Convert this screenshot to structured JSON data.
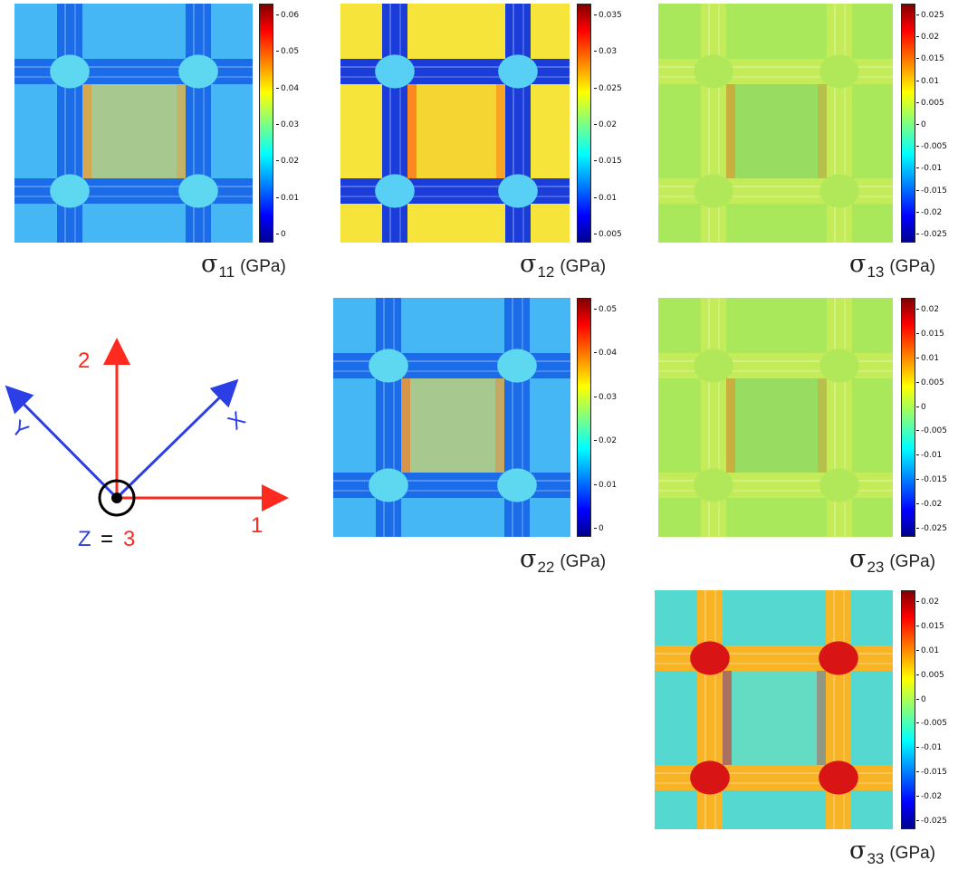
{
  "colors": {
    "axis_red": "#ff2a1f",
    "axis_blue": "#2c3fe6",
    "black": "#000000"
  },
  "panels": [
    {
      "id": "s11",
      "symbol": "σ",
      "subscript": "11",
      "unit": "(GPa)",
      "bg": "#45b7f5",
      "band": "#1a6ce8",
      "node": "#5ed7f0",
      "hot": "#fa8a1f",
      "mid": "#f8d83a",
      "ticks": [
        "0.06",
        "0.05",
        "0.04",
        "0.03",
        "0.02",
        "0.01",
        "0"
      ]
    },
    {
      "id": "s12",
      "symbol": "σ",
      "subscript": "12",
      "unit": "(GPa)",
      "bg": "#f7e43a",
      "band": "#1a3cd8",
      "node": "#58d0f5",
      "hot": "#ff4a12",
      "mid": "#f4c82a",
      "ticks": [
        "0.035",
        "0.03",
        "0.025",
        "0.02",
        "0.015",
        "0.01",
        "0.005"
      ]
    },
    {
      "id": "s13",
      "symbol": "σ",
      "subscript": "13",
      "unit": "(GPa)",
      "bg": "#a8e85a",
      "band": "#c4ec58",
      "node": "#b0e85a",
      "hot": "#f08a20",
      "mid": "#8ad46a",
      "ticks": [
        "0.025",
        "0.02",
        "0.015",
        "0.01",
        "0.005",
        "0",
        "-0.005",
        "-0.01",
        "-0.015",
        "-0.02",
        "-0.025"
      ]
    },
    {
      "id": "s22",
      "symbol": "σ",
      "subscript": "22",
      "unit": "(GPa)",
      "bg": "#45b7f5",
      "band": "#1a6ce8",
      "node": "#5ed7f0",
      "hot": "#ff6a14",
      "mid": "#f8d83a",
      "ticks": [
        "0.05",
        "0.04",
        "0.03",
        "0.02",
        "0.01",
        "0"
      ]
    },
    {
      "id": "s23",
      "symbol": "σ",
      "subscript": "23",
      "unit": "(GPa)",
      "bg": "#a8e85a",
      "band": "#c4ec58",
      "node": "#b0e85a",
      "hot": "#f08a20",
      "mid": "#8ad46a",
      "ticks": [
        "0.02",
        "0.015",
        "0.01",
        "0.005",
        "0",
        "-0.005",
        "-0.01",
        "-0.015",
        "-0.02",
        "-0.025"
      ]
    },
    {
      "id": "s33",
      "symbol": "σ",
      "subscript": "33",
      "unit": "(GPa)",
      "bg": "#55d8d0",
      "band": "#f8b424",
      "node": "#d81414",
      "hot": "#e61a10",
      "mid": "#6fe0b8",
      "ticks": [
        "0.02",
        "0.015",
        "0.01",
        "0.005",
        "0",
        "-0.005",
        "-0.01",
        "-0.015",
        "-0.02",
        "-0.025"
      ]
    }
  ],
  "axes": {
    "one": "1",
    "two": "2",
    "x": "X",
    "y": "Y",
    "z": "Z",
    "eq": "=",
    "three": "3"
  }
}
